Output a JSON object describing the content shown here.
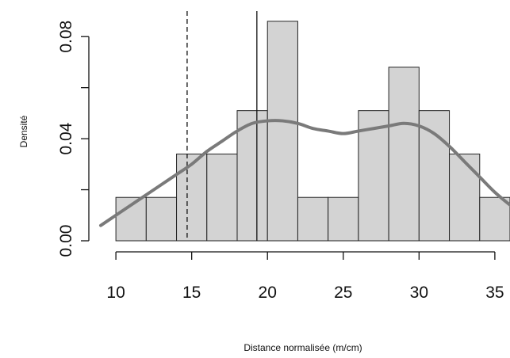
{
  "chart_data": {
    "type": "histogram",
    "xlabel": "Distance normalisée (m/cm)",
    "ylabel": "Densité",
    "xlim": [
      9,
      36
    ],
    "ylim": [
      0,
      0.09
    ],
    "x_ticks": [
      10,
      15,
      20,
      25,
      30,
      35
    ],
    "y_ticks": [
      0.0,
      0.04,
      0.08
    ],
    "y_tick_labels": [
      "0.00",
      "0.04",
      "0.08"
    ],
    "grid": false,
    "bars": [
      {
        "x0": 10,
        "x1": 12,
        "density": 0.017
      },
      {
        "x0": 12,
        "x1": 14,
        "density": 0.017
      },
      {
        "x0": 14,
        "x1": 16,
        "density": 0.034
      },
      {
        "x0": 16,
        "x1": 18,
        "density": 0.034
      },
      {
        "x0": 18,
        "x1": 20,
        "density": 0.051
      },
      {
        "x0": 20,
        "x1": 22,
        "density": 0.086
      },
      {
        "x0": 22,
        "x1": 24,
        "density": 0.017
      },
      {
        "x0": 24,
        "x1": 26,
        "density": 0.017
      },
      {
        "x0": 26,
        "x1": 28,
        "density": 0.051
      },
      {
        "x0": 28,
        "x1": 30,
        "density": 0.068
      },
      {
        "x0": 30,
        "x1": 32,
        "density": 0.051
      },
      {
        "x0": 32,
        "x1": 34,
        "density": 0.034
      },
      {
        "x0": 34,
        "x1": 36,
        "density": 0.017
      }
    ],
    "density_curve": {
      "x": [
        9,
        10,
        11,
        12,
        13,
        14,
        15,
        16,
        17,
        18,
        19,
        20,
        21,
        22,
        23,
        24,
        25,
        26,
        27,
        28,
        29,
        30,
        31,
        32,
        33,
        34,
        35,
        36
      ],
      "y": [
        0.006,
        0.01,
        0.014,
        0.018,
        0.022,
        0.026,
        0.03,
        0.035,
        0.039,
        0.043,
        0.046,
        0.047,
        0.047,
        0.046,
        0.044,
        0.043,
        0.042,
        0.043,
        0.044,
        0.045,
        0.046,
        0.045,
        0.042,
        0.037,
        0.031,
        0.025,
        0.019,
        0.014
      ]
    },
    "vertical_lines": [
      {
        "x": 14.7,
        "style": "dashed"
      },
      {
        "x": 19.3,
        "style": "solid"
      }
    ],
    "colors": {
      "bar_fill": "#d3d3d3",
      "bar_stroke": "#222222",
      "curve": "#7a7a7a",
      "axis": "#111111"
    }
  }
}
